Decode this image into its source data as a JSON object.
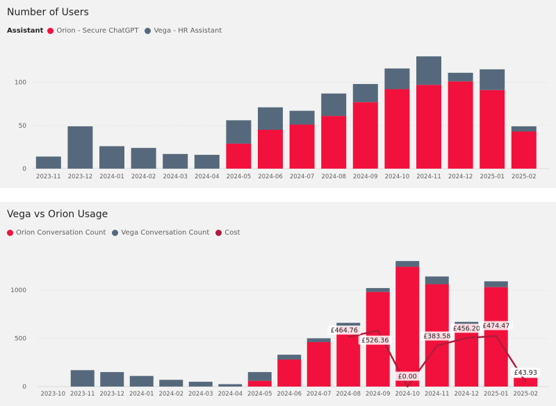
{
  "colors": {
    "orion": "#f2113c",
    "vega": "#56697c",
    "cost": "#b01c3c",
    "grid": "#d9d9d9",
    "axis_text": "#605e5c"
  },
  "chart_data": [
    {
      "type": "bar",
      "stacked": true,
      "title": "Number of Users",
      "legend_title": "Assistant",
      "categories": [
        "2023-11",
        "2023-12",
        "2024-01",
        "2024-02",
        "2024-03",
        "2024-04",
        "2024-05",
        "2024-06",
        "2024-07",
        "2024-08",
        "2024-09",
        "2024-10",
        "2024-11",
        "2024-12",
        "2025-01",
        "2025-02"
      ],
      "series": [
        {
          "name": "Orion - Secure ChatGPT",
          "values": [
            0,
            0,
            0,
            0,
            0,
            0,
            29,
            45,
            51,
            61,
            77,
            92,
            97,
            101,
            91,
            43
          ]
        },
        {
          "name": "Vega - HR Assistant",
          "values": [
            14,
            49,
            26,
            24,
            17,
            16,
            27,
            26,
            16,
            26,
            21,
            24,
            33,
            10,
            24,
            6
          ]
        }
      ],
      "yticks": [
        0,
        50,
        100
      ],
      "ylim": [
        0,
        135
      ]
    },
    {
      "type": "bar",
      "stacked": true,
      "title": "Vega vs Orion Usage",
      "categories": [
        "2023-10",
        "2023-11",
        "2023-12",
        "2024-01",
        "2024-02",
        "2024-03",
        "2024-04",
        "2024-05",
        "2024-06",
        "2024-07",
        "2024-08",
        "2024-09",
        "2024-10",
        "2024-11",
        "2024-12",
        "2025-01",
        "2025-02"
      ],
      "series": [
        {
          "name": "Orion Conversation Count",
          "values": [
            0,
            0,
            0,
            0,
            0,
            0,
            0,
            60,
            280,
            460,
            620,
            980,
            1240,
            1060,
            650,
            1030,
            90
          ]
        },
        {
          "name": "Vega Conversation Count",
          "values": [
            0,
            170,
            150,
            110,
            70,
            50,
            25,
            90,
            50,
            40,
            40,
            40,
            60,
            80,
            20,
            60,
            0
          ]
        }
      ],
      "line": {
        "name": "Cost",
        "points": [
          {
            "category": "2024-08",
            "value": 464.76,
            "label": "£464.76"
          },
          {
            "category": "2024-09",
            "value": 526.36,
            "label": "£526.36"
          },
          {
            "category": "2024-10",
            "value": 0,
            "label": "£0.00"
          },
          {
            "category": "2024-11",
            "value": 383.58,
            "label": "£383.58"
          },
          {
            "category": "2024-12",
            "value": 456.2,
            "label": "£456.20"
          },
          {
            "category": "2025-01",
            "value": 474.47,
            "label": "£474.47"
          },
          {
            "category": "2025-02",
            "value": 43.93,
            "label": "£43.93"
          }
        ]
      },
      "yticks": [
        0,
        500,
        1000
      ],
      "ylim": [
        0,
        1380
      ]
    }
  ]
}
